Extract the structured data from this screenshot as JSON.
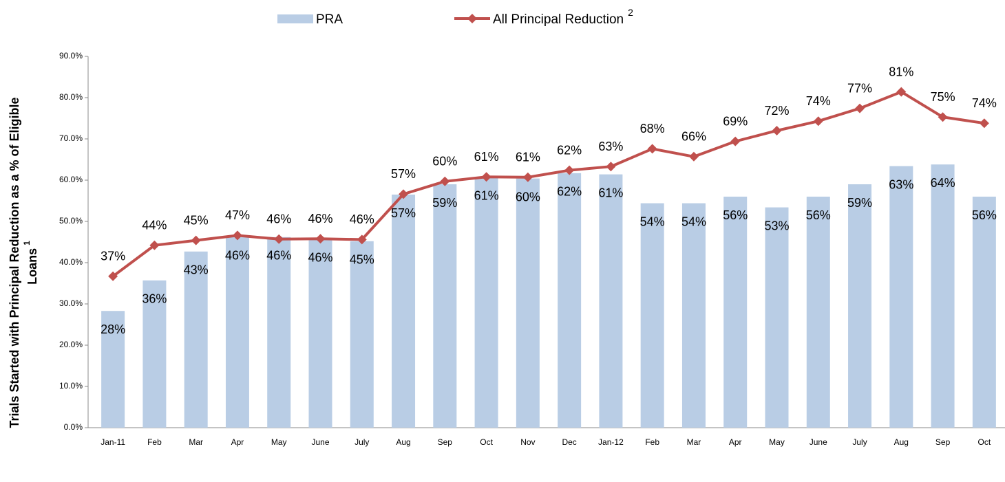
{
  "chart_data": {
    "type": "bar_line",
    "y_label": [
      "Trials Started with Principal Reduction as a % of Eligible",
      "Loans"
    ],
    "y_label_superscript": "1",
    "categories": [
      "Jan-11",
      "Feb",
      "Mar",
      "Apr",
      "May",
      "June",
      "July",
      "Aug",
      "Sep",
      "Oct",
      "Nov",
      "Dec",
      "Jan-12",
      "Feb",
      "Mar",
      "Apr",
      "May",
      "June",
      "July",
      "Aug",
      "Sep",
      "Oct"
    ],
    "ylim": [
      0,
      90
    ],
    "yticks": [
      {
        "value": 0,
        "label": "0.0%"
      },
      {
        "value": 10,
        "label": "10.0%"
      },
      {
        "value": 20,
        "label": "20.0%"
      },
      {
        "value": 30,
        "label": "30.0%"
      },
      {
        "value": 40,
        "label": "40.0%"
      },
      {
        "value": 50,
        "label": "50.0%"
      },
      {
        "value": 60,
        "label": "60.0%"
      },
      {
        "value": 70,
        "label": "70.0%"
      },
      {
        "value": 80,
        "label": "80.0%"
      },
      {
        "value": 90,
        "label": "90.0%"
      }
    ],
    "series": [
      {
        "name": "PRA",
        "type": "bar",
        "color": "#b9cde5",
        "values": [
          28.3,
          35.7,
          42.7,
          46.2,
          46.2,
          45.7,
          45.2,
          56.5,
          59.0,
          60.7,
          60.4,
          61.7,
          61.4,
          54.4,
          54.4,
          56.0,
          53.4,
          56.0,
          59.0,
          63.4,
          63.8,
          56.0
        ],
        "value_labels": [
          "28%",
          "36%",
          "43%",
          "46%",
          "46%",
          "46%",
          "45%",
          "57%",
          "59%",
          "61%",
          "60%",
          "62%",
          "61%",
          "54%",
          "54%",
          "56%",
          "53%",
          "56%",
          "59%",
          "63%",
          "64%",
          "56%"
        ]
      },
      {
        "name": "All Principal Reduction",
        "name_superscript": "2",
        "type": "line",
        "color": "#c0504d",
        "values": [
          36.7,
          44.2,
          45.4,
          46.6,
          45.7,
          45.8,
          45.6,
          56.6,
          59.7,
          60.8,
          60.7,
          62.4,
          63.3,
          67.6,
          65.7,
          69.4,
          72.0,
          74.3,
          77.4,
          81.4,
          75.3,
          73.8
        ],
        "value_labels": [
          "37%",
          "44%",
          "45%",
          "47%",
          "46%",
          "46%",
          "46%",
          "57%",
          "60%",
          "61%",
          "61%",
          "62%",
          "63%",
          "68%",
          "66%",
          "69%",
          "72%",
          "74%",
          "77%",
          "81%",
          "75%",
          "74%"
        ]
      }
    ]
  }
}
